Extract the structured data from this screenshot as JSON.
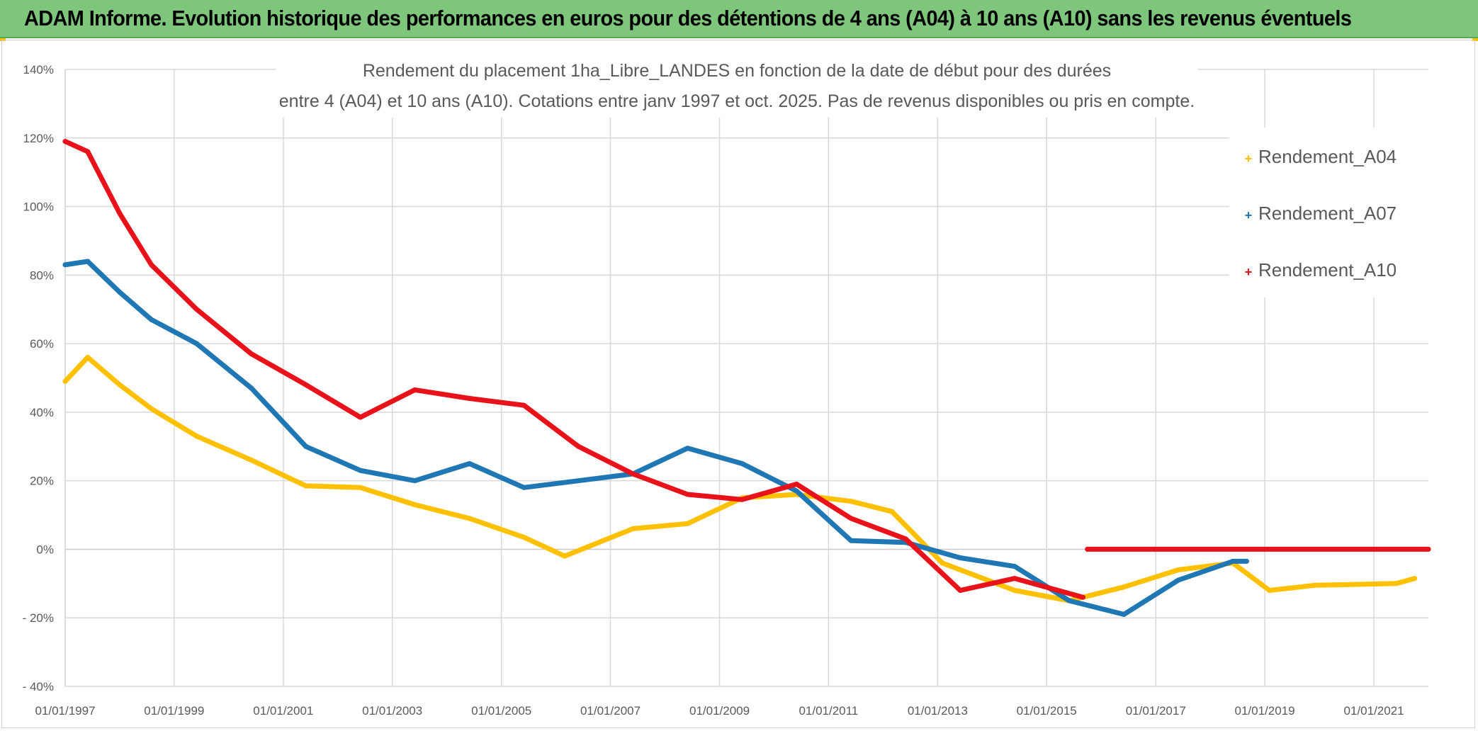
{
  "banner": {
    "title": "ADAM Informe. Evolution historique des performances en euros pour des détentions de 4 ans (A04) à 10 ans (A10) sans les revenus éventuels",
    "background_color": "#7dc67b"
  },
  "chart_data": {
    "type": "line",
    "title_line1": "Rendement du placement 1ha_Libre_LANDES en fonction de la date de début pour des durées",
    "title_line2": "entre 4 (A04) et 10 ans (A10). Cotations entre janv 1997 et oct. 2025. Pas de revenus disponibles ou pris en compte.",
    "xlabel": "",
    "ylabel": "",
    "x_type": "date",
    "xlim": [
      "1997-01-01",
      "2022-01-01"
    ],
    "ylim": [
      -40,
      140
    ],
    "y_ticks": [
      -40,
      -20,
      0,
      20,
      40,
      60,
      80,
      100,
      120,
      140
    ],
    "y_tick_labels": [
      "- 40%",
      "- 20%",
      "0%",
      "20%",
      "40%",
      "60%",
      "80%",
      "100%",
      "120%",
      "140%"
    ],
    "x_ticks": [
      "1997-01-01",
      "1999-01-01",
      "2001-01-01",
      "2003-01-01",
      "2005-01-01",
      "2007-01-01",
      "2009-01-01",
      "2011-01-01",
      "2013-01-01",
      "2015-01-01",
      "2017-01-01",
      "2019-01-01",
      "2021-01-01"
    ],
    "x_tick_labels": [
      "01/01/1997",
      "01/01/1999",
      "01/01/2001",
      "01/01/2003",
      "01/01/2005",
      "01/01/2007",
      "01/01/2009",
      "01/01/2011",
      "01/01/2013",
      "01/01/2015",
      "01/01/2017",
      "01/01/2019",
      "01/01/2021"
    ],
    "grid": true,
    "legend_position": "right",
    "series": [
      {
        "name": "Rendement_A04",
        "color": "#ffc000",
        "points": [
          [
            "1997-01-01",
            49
          ],
          [
            "1997-06-01",
            56
          ],
          [
            "1998-01-01",
            48
          ],
          [
            "1998-08-01",
            41
          ],
          [
            "1999-06-01",
            33
          ],
          [
            "2000-06-01",
            26
          ],
          [
            "2001-06-01",
            18.5
          ],
          [
            "2002-06-01",
            18
          ],
          [
            "2003-06-01",
            13
          ],
          [
            "2004-06-01",
            9
          ],
          [
            "2005-06-01",
            3.5
          ],
          [
            "2006-03-01",
            -2
          ],
          [
            "2007-06-01",
            6
          ],
          [
            "2008-06-01",
            7.5
          ],
          [
            "2009-06-01",
            15
          ],
          [
            "2010-06-01",
            16
          ],
          [
            "2011-06-01",
            14
          ],
          [
            "2012-03-01",
            11
          ],
          [
            "2013-02-01",
            -4
          ],
          [
            "2014-06-01",
            -12
          ],
          [
            "2015-06-01",
            -15
          ],
          [
            "2016-06-01",
            -11
          ],
          [
            "2017-06-01",
            -6
          ],
          [
            "2018-06-01",
            -4
          ],
          [
            "2019-02-01",
            -12
          ],
          [
            "2019-12-01",
            -10.5
          ],
          [
            "2021-06-01",
            -10
          ],
          [
            "2021-10-01",
            -8.5
          ]
        ]
      },
      {
        "name": "Rendement_A07",
        "color": "#1f77b4",
        "points": [
          [
            "1997-01-01",
            83
          ],
          [
            "1997-06-01",
            84
          ],
          [
            "1998-01-01",
            75
          ],
          [
            "1998-08-01",
            67
          ],
          [
            "1999-06-01",
            60
          ],
          [
            "2000-06-01",
            47
          ],
          [
            "2001-06-01",
            30
          ],
          [
            "2002-06-01",
            23
          ],
          [
            "2003-06-01",
            20
          ],
          [
            "2004-06-01",
            25
          ],
          [
            "2005-06-01",
            18
          ],
          [
            "2006-06-01",
            20
          ],
          [
            "2007-06-01",
            22
          ],
          [
            "2008-06-01",
            29.5
          ],
          [
            "2009-06-01",
            25
          ],
          [
            "2010-06-01",
            17
          ],
          [
            "2011-06-01",
            2.5
          ],
          [
            "2012-06-01",
            2
          ],
          [
            "2013-06-01",
            -2.5
          ],
          [
            "2014-06-01",
            -5
          ],
          [
            "2015-06-01",
            -15
          ],
          [
            "2016-06-01",
            -19
          ],
          [
            "2017-06-01",
            -9
          ],
          [
            "2018-06-01",
            -3.5
          ],
          [
            "2018-09-01",
            -3.5
          ]
        ]
      },
      {
        "name": "Rendement_A10",
        "color": "#e8121b",
        "points": [
          [
            "1997-01-01",
            119
          ],
          [
            "1997-06-01",
            116
          ],
          [
            "1998-01-01",
            98
          ],
          [
            "1998-08-01",
            83
          ],
          [
            "1999-06-01",
            70
          ],
          [
            "2000-06-01",
            57
          ],
          [
            "2001-06-01",
            48
          ],
          [
            "2002-06-01",
            38.5
          ],
          [
            "2003-06-01",
            46.5
          ],
          [
            "2004-06-01",
            44
          ],
          [
            "2005-06-01",
            42
          ],
          [
            "2006-06-01",
            30
          ],
          [
            "2007-06-01",
            22
          ],
          [
            "2008-06-01",
            16
          ],
          [
            "2009-06-01",
            14.5
          ],
          [
            "2010-06-01",
            19
          ],
          [
            "2011-06-01",
            9
          ],
          [
            "2012-06-01",
            3
          ],
          [
            "2013-06-01",
            -12
          ],
          [
            "2014-06-01",
            -8.5
          ],
          [
            "2015-09-01",
            -14
          ]
        ]
      },
      {
        "name": "",
        "color": "#e8121b",
        "points": [
          [
            "2015-10-01",
            0
          ],
          [
            "2022-01-01",
            0
          ]
        ]
      }
    ]
  }
}
